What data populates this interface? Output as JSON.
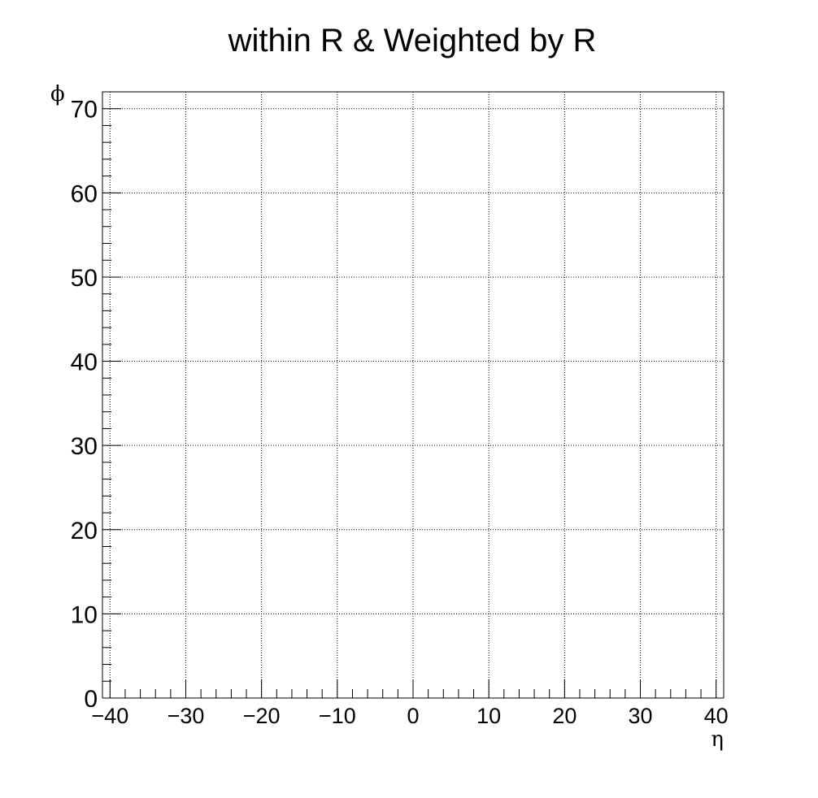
{
  "chart_data": {
    "type": "scatter",
    "title": "within R & Weighted by R",
    "xlabel": "η",
    "ylabel": "ϕ",
    "xlim": [
      -41,
      41
    ],
    "ylim": [
      0,
      72
    ],
    "xticks": [
      -40,
      -30,
      -20,
      -10,
      0,
      10,
      20,
      30,
      40
    ],
    "xtick_labels": [
      "−40",
      "−30",
      "−20",
      "−10",
      "0",
      "10",
      "20",
      "30",
      "40"
    ],
    "yticks": [
      0,
      10,
      20,
      30,
      40,
      50,
      60,
      70
    ],
    "ytick_labels": [
      "0",
      "10",
      "20",
      "30",
      "40",
      "50",
      "60",
      "70"
    ],
    "x_minor_step": 2,
    "y_minor_step": 2,
    "grid": true,
    "grid_style": "dotted",
    "legend": "none",
    "series": []
  }
}
